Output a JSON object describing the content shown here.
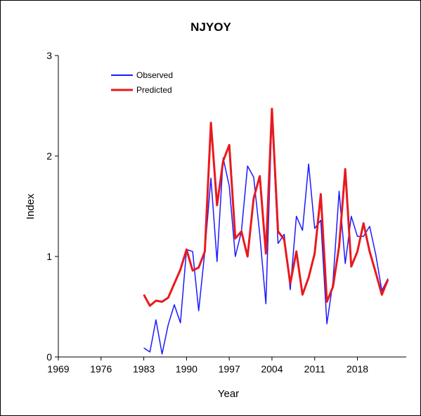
{
  "chart_data": {
    "type": "line",
    "title": "NJYOY",
    "xlabel": "Year",
    "ylabel": "Index",
    "xlim": [
      1969,
      2026
    ],
    "ylim": [
      0,
      3
    ],
    "x_ticks": [
      "1969",
      "1976",
      "1983",
      "1990",
      "1997",
      "2004",
      "2011",
      "2018"
    ],
    "y_ticks": [
      "0",
      "1",
      "2",
      "3"
    ],
    "grid": false,
    "legend_position": "top-left",
    "series": [
      {
        "name": "Observed",
        "color": "#1a1aff",
        "x": [
          1983,
          1984,
          1985,
          1986,
          1987,
          1988,
          1989,
          1990,
          1991,
          1992,
          1993,
          1994,
          1995,
          1996,
          1997,
          1998,
          1999,
          2000,
          2001,
          2002,
          2003,
          2004,
          2005,
          2006,
          2007,
          2008,
          2009,
          2010,
          2011,
          2012,
          2013,
          2014,
          2015,
          2016,
          2017,
          2018,
          2019,
          2020,
          2021,
          2022,
          2023
        ],
        "values": [
          0.09,
          0.05,
          0.37,
          0.03,
          0.32,
          0.52,
          0.34,
          1.07,
          1.05,
          0.46,
          1.05,
          1.78,
          0.95,
          1.98,
          1.7,
          1.0,
          1.25,
          1.9,
          1.79,
          1.22,
          0.53,
          2.4,
          1.13,
          1.22,
          0.67,
          1.4,
          1.26,
          1.92,
          1.28,
          1.36,
          0.33,
          0.75,
          1.65,
          0.93,
          1.4,
          1.2,
          1.2,
          1.3,
          1.02,
          0.66,
          0.78
        ]
      },
      {
        "name": "Predicted",
        "color": "#e8191f",
        "x": [
          1983,
          1984,
          1985,
          1986,
          1987,
          1988,
          1989,
          1990,
          1991,
          1992,
          1993,
          1994,
          1995,
          1996,
          1997,
          1998,
          1999,
          2000,
          2001,
          2002,
          2003,
          2004,
          2005,
          2006,
          2007,
          2008,
          2009,
          2010,
          2011,
          2012,
          2013,
          2014,
          2015,
          2016,
          2017,
          2018,
          2019,
          2020,
          2021,
          2022,
          2023
        ],
        "values": [
          0.62,
          0.51,
          0.56,
          0.55,
          0.59,
          0.73,
          0.87,
          1.07,
          0.86,
          0.89,
          1.05,
          2.33,
          1.51,
          1.95,
          2.11,
          1.18,
          1.25,
          1.0,
          1.58,
          1.8,
          1.03,
          2.47,
          1.25,
          1.17,
          0.73,
          1.05,
          0.62,
          0.79,
          1.03,
          1.62,
          0.55,
          0.7,
          1.1,
          1.87,
          0.9,
          1.05,
          1.33,
          1.05,
          0.84,
          0.62,
          0.77
        ]
      }
    ]
  }
}
